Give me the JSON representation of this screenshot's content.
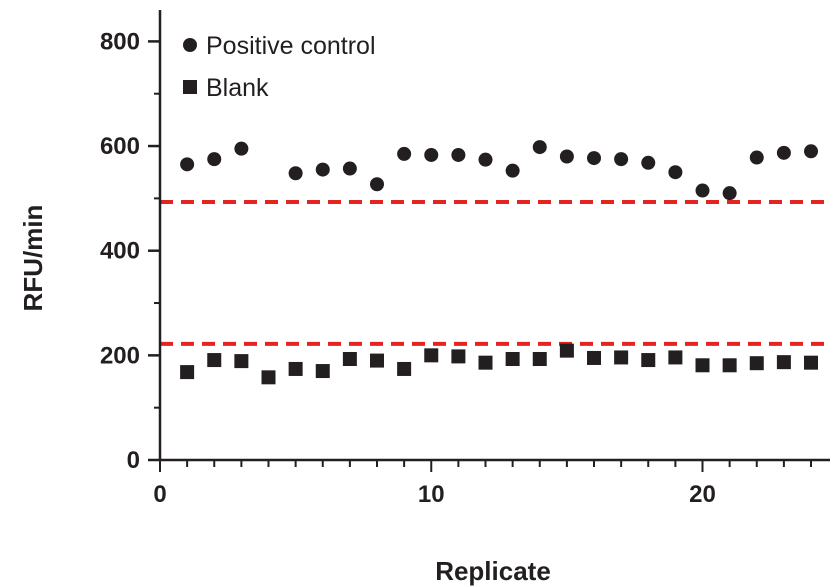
{
  "chart_data": {
    "type": "scatter",
    "title": "",
    "xlabel": "Replicate",
    "ylabel": "RFU/min",
    "xlim": [
      0,
      24.7
    ],
    "ylim": [
      0,
      860
    ],
    "x_ticks": [
      0,
      10,
      20
    ],
    "y_ticks": [
      0,
      200,
      400,
      600,
      800
    ],
    "grid": false,
    "legend_position": "top-left",
    "series": [
      {
        "name": "Positive control",
        "marker": "circle",
        "color": "#231f20",
        "x": [
          1,
          2,
          3,
          4,
          5,
          6,
          7,
          8,
          9,
          10,
          11,
          12,
          13,
          14,
          15,
          16,
          17,
          18,
          19,
          20,
          21,
          22,
          23,
          24
        ],
        "y": [
          null,
          575,
          595,
          null,
          548,
          555,
          557,
          527,
          585,
          583,
          583,
          574,
          553,
          598,
          580,
          577,
          575,
          568,
          550,
          515,
          510,
          578,
          587,
          590
        ]
      },
      {
        "name": "Blank",
        "marker": "square",
        "color": "#231f20",
        "x": [
          1,
          2,
          3,
          4,
          5,
          6,
          7,
          8,
          9,
          10,
          11,
          12,
          13,
          14,
          15,
          16,
          17,
          18,
          19,
          20,
          21,
          22,
          23,
          24
        ],
        "y": [
          168,
          191,
          189,
          158,
          174,
          170,
          193,
          190,
          174,
          200,
          198,
          186,
          193,
          193,
          209,
          195,
          196,
          191,
          196,
          181,
          181,
          185,
          187,
          186
        ]
      }
    ],
    "reference_lines": [
      {
        "y": 493,
        "color": "#e52421",
        "style": "dashed"
      },
      {
        "y": 222,
        "color": "#e52421",
        "style": "dashed"
      }
    ]
  }
}
